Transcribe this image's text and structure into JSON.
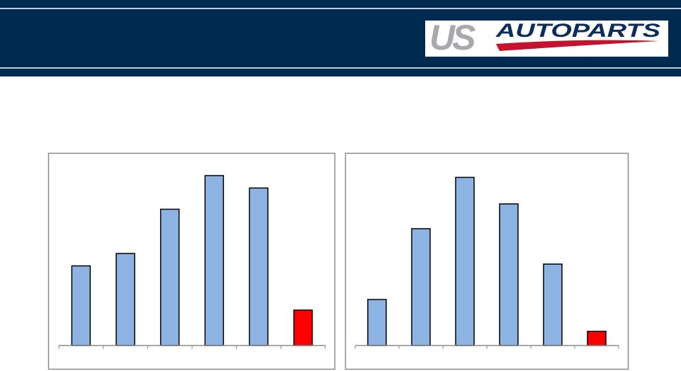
{
  "header": {
    "logo": {
      "part1": "US",
      "part2": "AUTOPARTS"
    }
  },
  "chart_data": [
    {
      "type": "bar",
      "categories": [
        null,
        null,
        null,
        null,
        null,
        null
      ],
      "values": [
        45,
        52,
        77,
        96,
        89,
        20
      ],
      "colors": [
        "#8db3e2",
        "#8db3e2",
        "#8db3e2",
        "#8db3e2",
        "#8db3e2",
        "#ff0000"
      ],
      "ylim": [
        0,
        100
      ]
    },
    {
      "type": "bar",
      "categories": [
        null,
        null,
        null,
        null,
        null,
        null
      ],
      "values": [
        26,
        66,
        95,
        80,
        46,
        8
      ],
      "colors": [
        "#8db3e2",
        "#8db3e2",
        "#8db3e2",
        "#8db3e2",
        "#8db3e2",
        "#ff0000"
      ],
      "ylim": [
        0,
        100
      ]
    }
  ]
}
